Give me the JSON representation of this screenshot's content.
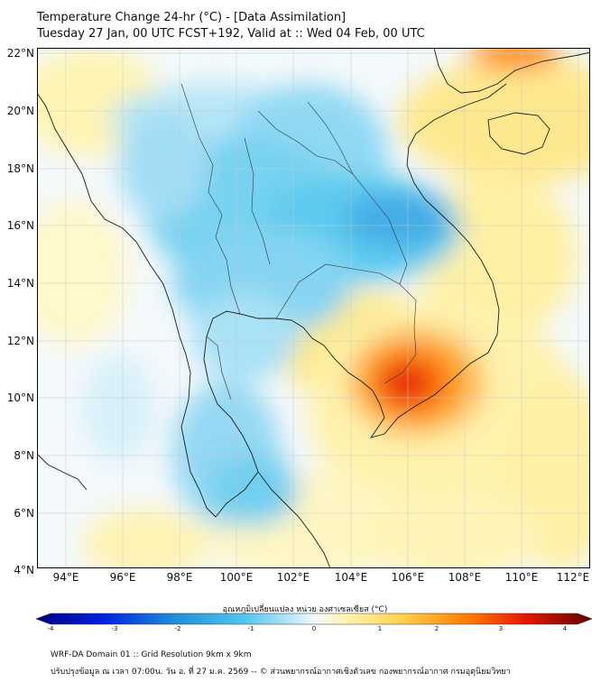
{
  "header": {
    "title_line1": "Temperature Change 24-hr (°C) - [Data Assimilation]",
    "title_line2": "Tuesday 27 Jan, 00 UTC FCST+192, Valid at :: Wed 04 Feb, 00 UTC"
  },
  "axes": {
    "lat_labels": [
      "22°N",
      "20°N",
      "18°N",
      "16°N",
      "14°N",
      "12°N",
      "10°N",
      "8°N",
      "6°N",
      "4°N"
    ],
    "lon_labels": [
      "94°E",
      "96°E",
      "98°E",
      "100°E",
      "102°E",
      "104°E",
      "106°E",
      "108°E",
      "110°E",
      "112°E"
    ]
  },
  "colorbar": {
    "title": "อุณหภูมิเปลี่ยนแปลง หน่วย องศาเซลเซียส (°C)",
    "ticks": [
      "-4",
      "-3",
      "-2",
      "-1",
      "0",
      "1",
      "2",
      "3",
      "4"
    ]
  },
  "footer": {
    "line1": "WRF-DA Domain 01 :: Grid Resolution 9km x 9km",
    "line2": "ปรับปรุงข้อมูล ณ เวลา 07:00น. วัน อ. ที่ 27 ม.ค. 2569 -- © ส่วนพยากรณ์อากาศเชิงตัวเลข กองพยากรณ์อากาศ กรมอุตุนิยมวิทยา"
  },
  "colors": {
    "cold_strong": "#1e90d8",
    "cold_mid": "#55c8ef",
    "cold_light": "#b3e5f7",
    "neutral": "#f4f9fb",
    "warm_light": "#fff4b0",
    "warm_mid": "#ffd24a",
    "warm_strong": "#ff7a00",
    "hot": "#e81800"
  }
}
